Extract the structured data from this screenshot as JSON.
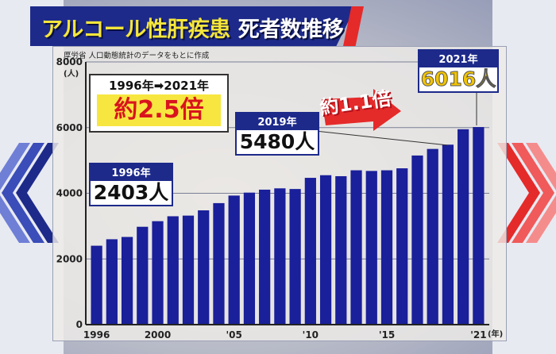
{
  "title": {
    "main": "アルコール性肝疾患",
    "sub": "死者数推移"
  },
  "source": "厚労省 人口動態統計のデータをもとに作成",
  "y_unit": "(人)",
  "x_unit": "(年)",
  "multiplier": {
    "range": "1996年➡2021年",
    "value": "約2.5倍"
  },
  "growth_arrow": "約1.1倍",
  "callouts": {
    "c1996": {
      "year": "1996年",
      "value": "2403人"
    },
    "c2019": {
      "year": "2019年",
      "value": "5480人"
    },
    "c2021": {
      "year": "2021年",
      "value": "6016人"
    }
  },
  "chart_data": {
    "type": "bar",
    "ylim": [
      0,
      8000
    ],
    "yticks": [
      0,
      2000,
      4000,
      6000,
      8000
    ],
    "x_tick_labels": [
      {
        "index": 0,
        "label": "1996"
      },
      {
        "index": 4,
        "label": "2000"
      },
      {
        "index": 9,
        "label": "'05"
      },
      {
        "index": 14,
        "label": "'10"
      },
      {
        "index": 19,
        "label": "'15"
      },
      {
        "index": 25,
        "label": "'21"
      }
    ],
    "categories": [
      "1996",
      "1997",
      "1998",
      "1999",
      "2000",
      "2001",
      "2002",
      "2003",
      "2004",
      "2005",
      "2006",
      "2007",
      "2008",
      "2009",
      "2010",
      "2011",
      "2012",
      "2013",
      "2014",
      "2015",
      "2016",
      "2017",
      "2018",
      "2019",
      "2020",
      "2021"
    ],
    "values": [
      2403,
      2600,
      2670,
      2980,
      3150,
      3300,
      3320,
      3480,
      3700,
      3930,
      4020,
      4110,
      4150,
      4130,
      4470,
      4550,
      4520,
      4700,
      4680,
      4700,
      4760,
      5150,
      5350,
      5480,
      5950,
      6016
    ],
    "colors": {
      "bar": "#1a1f9a"
    }
  }
}
